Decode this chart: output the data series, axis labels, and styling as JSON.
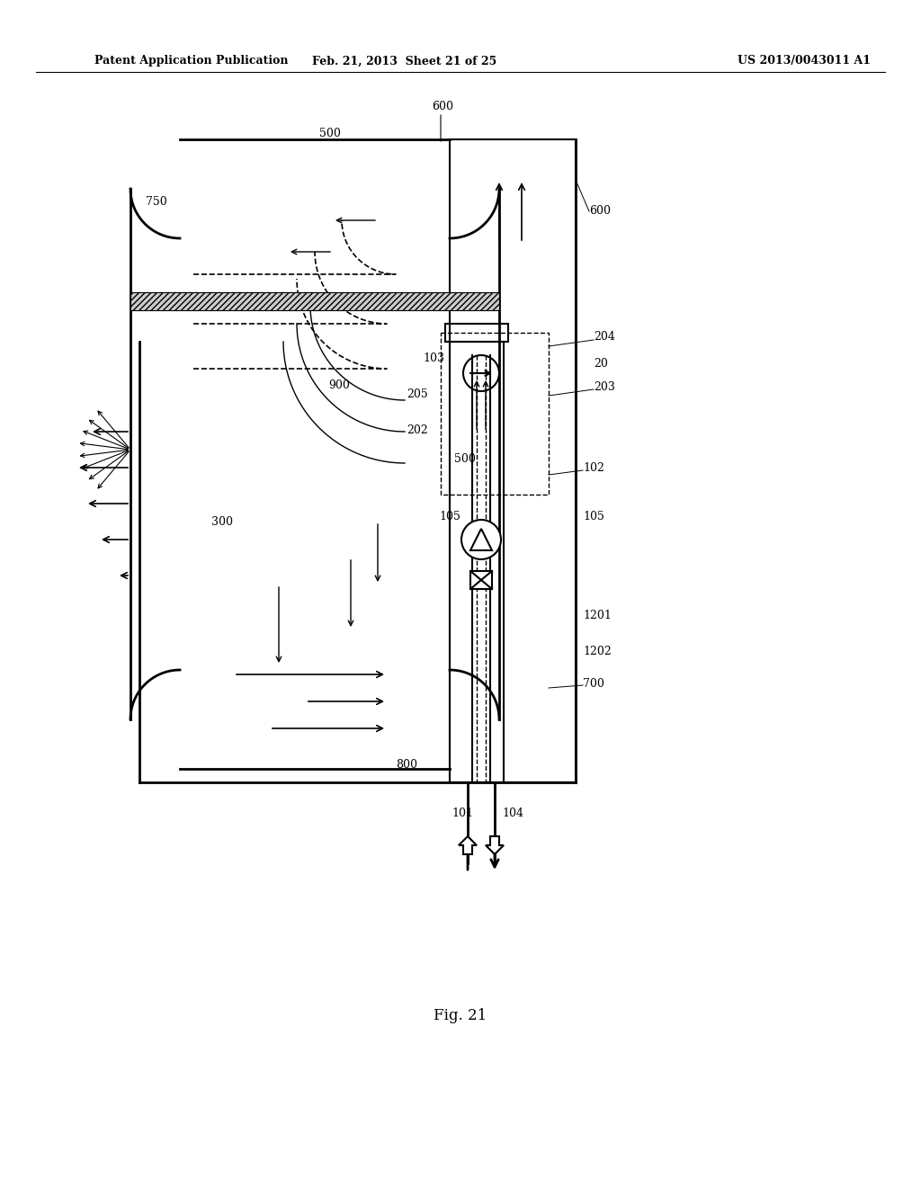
{
  "bg_color": "#ffffff",
  "header_left": "Patent Application Publication",
  "header_mid": "Feb. 21, 2013  Sheet 21 of 25",
  "header_right": "US 2013/0043011 A1",
  "fig_label": "Fig. 21",
  "labels": {
    "600_top": "600",
    "500_top": "500",
    "750": "750",
    "600_right": "600",
    "204": "204",
    "20": "20",
    "203": "203",
    "103": "103",
    "205": "205",
    "202": "202",
    "500_mid": "500",
    "102": "102",
    "105_left": "105",
    "105_right": "105",
    "300": "300",
    "800": "800",
    "1201": "1201",
    "1202": "1202",
    "700": "700",
    "101": "101",
    "104": "104",
    "900": "900"
  }
}
